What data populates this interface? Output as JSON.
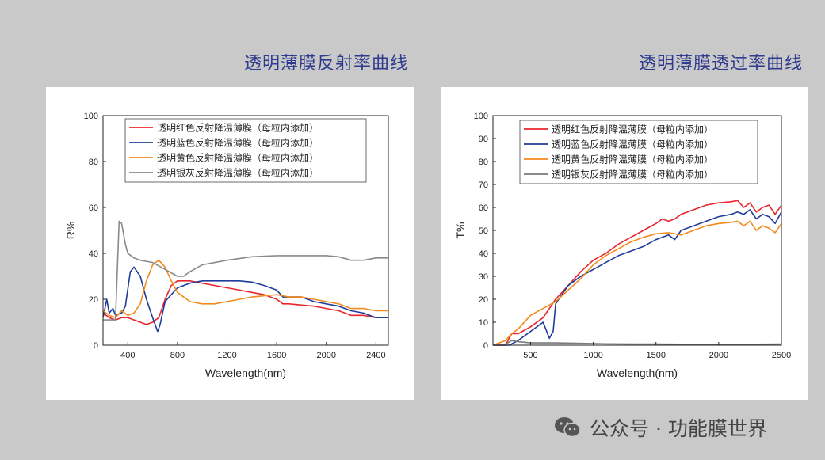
{
  "titles": {
    "left": "透明薄膜反射率曲线",
    "right": "透明薄膜透过率曲线"
  },
  "watermark": {
    "text": "公众号 · 功能膜世界",
    "icon": "wechat-icon"
  },
  "chart_data": [
    {
      "type": "line",
      "title": "",
      "xlabel": "Wavelength(nm)",
      "ylabel": "R%",
      "xlim": [
        200,
        2500
      ],
      "ylim": [
        0,
        100
      ],
      "xticks": [
        400,
        800,
        1200,
        1600,
        2000,
        2400
      ],
      "yticks": [
        0,
        20,
        40,
        60,
        80,
        100
      ],
      "legend_position": "top-right",
      "series": [
        {
          "name": "透明红色反射降温薄膜（母粒内添加）",
          "color": "#e8262f",
          "x": [
            200,
            250,
            300,
            350,
            400,
            450,
            500,
            550,
            600,
            650,
            700,
            750,
            800,
            900,
            1000,
            1100,
            1200,
            1300,
            1400,
            1500,
            1600,
            1650,
            1700,
            1800,
            1900,
            2000,
            2100,
            2200,
            2300,
            2400,
            2500
          ],
          "y": [
            14,
            12,
            11,
            12,
            12,
            11,
            10,
            9,
            10,
            12,
            20,
            26,
            28,
            28,
            27,
            26,
            25,
            24,
            23,
            22,
            20,
            18,
            18,
            17.5,
            17,
            16,
            15,
            13,
            13,
            12,
            12
          ]
        },
        {
          "name": "透明蓝色反射降温薄膜（母粒内添加）",
          "color": "#1f3c9a",
          "x": [
            200,
            230,
            250,
            280,
            300,
            350,
            380,
            420,
            450,
            500,
            550,
            600,
            620,
            640,
            660,
            700,
            800,
            900,
            1000,
            1100,
            1200,
            1300,
            1400,
            1500,
            1600,
            1650,
            1700,
            1800,
            1900,
            2000,
            2100,
            2200,
            2300,
            2400,
            2500
          ],
          "y": [
            12,
            20,
            14,
            16,
            13,
            14,
            17,
            32,
            34,
            30,
            20,
            12,
            9,
            6,
            9,
            19,
            25,
            27,
            28,
            28,
            28,
            28,
            27.5,
            26,
            24,
            21,
            21,
            21,
            19,
            18,
            17,
            15,
            14,
            12,
            12
          ]
        },
        {
          "name": "透明黄色反射降温薄膜（母粒内添加）",
          "color": "#f28a1e",
          "x": [
            200,
            250,
            300,
            350,
            400,
            450,
            500,
            550,
            600,
            650,
            700,
            750,
            800,
            900,
            1000,
            1100,
            1200,
            1300,
            1400,
            1500,
            1600,
            1700,
            1800,
            1900,
            2000,
            2100,
            2200,
            2300,
            2400,
            2500
          ],
          "y": [
            15,
            13,
            12,
            15,
            13,
            14,
            18,
            28,
            35,
            37,
            34,
            28,
            23,
            19,
            18,
            18,
            19,
            20,
            21,
            21.5,
            22,
            21,
            21,
            20,
            19,
            18,
            16,
            16,
            15,
            15
          ]
        },
        {
          "name": "透明银灰反射降温薄膜（母粒内添加）",
          "color": "#8a8a8a",
          "x": [
            200,
            250,
            300,
            330,
            350,
            380,
            400,
            450,
            500,
            600,
            700,
            800,
            850,
            900,
            1000,
            1200,
            1400,
            1600,
            1800,
            2000,
            2100,
            2200,
            2300,
            2400,
            2500
          ],
          "y": [
            11,
            11,
            11,
            54,
            53,
            44,
            40,
            38,
            37,
            36,
            33,
            30,
            30,
            32,
            35,
            37,
            38.5,
            39,
            39,
            39,
            38.5,
            37,
            37,
            38,
            38
          ]
        }
      ]
    },
    {
      "type": "line",
      "title": "",
      "xlabel": "Wavelength(nm)",
      "ylabel": "T%",
      "xlim": [
        200,
        2500
      ],
      "ylim": [
        0,
        100
      ],
      "xticks": [
        500,
        1000,
        1500,
        2000,
        2500
      ],
      "yticks": [
        0,
        10,
        20,
        30,
        40,
        50,
        60,
        70,
        80,
        90,
        100
      ],
      "legend_position": "top",
      "series": [
        {
          "name": "透明红色反射降温薄膜（母粒内添加）",
          "color": "#e8262f",
          "x": [
            200,
            300,
            350,
            400,
            500,
            600,
            700,
            800,
            900,
            1000,
            1100,
            1200,
            1300,
            1400,
            1500,
            1550,
            1600,
            1650,
            1700,
            1800,
            1900,
            2000,
            2100,
            2150,
            2200,
            2250,
            2300,
            2350,
            2400,
            2450,
            2500
          ],
          "y": [
            0,
            0,
            5,
            5,
            8,
            12,
            20,
            26,
            32,
            37,
            40,
            44,
            47,
            50,
            53,
            55,
            54,
            55,
            57,
            59,
            61,
            62,
            62.5,
            63,
            60,
            62,
            58,
            60,
            61,
            57,
            61
          ]
        },
        {
          "name": "透明蓝色反射降温薄膜（母粒内添加）",
          "color": "#1f3c9a",
          "x": [
            200,
            300,
            330,
            400,
            500,
            600,
            650,
            680,
            700,
            750,
            800,
            900,
            1000,
            1100,
            1200,
            1300,
            1400,
            1500,
            1600,
            1650,
            1700,
            1800,
            1900,
            2000,
            2100,
            2150,
            2200,
            2250,
            2300,
            2350,
            2400,
            2450,
            2500
          ],
          "y": [
            0,
            0,
            0,
            2,
            6,
            10,
            3,
            6,
            18,
            22,
            26,
            30,
            33,
            36,
            39,
            41,
            43,
            46,
            48,
            46,
            50,
            52,
            54,
            56,
            57,
            58,
            57,
            59,
            55,
            57,
            56,
            53,
            58
          ]
        },
        {
          "name": "透明黄色反射降温薄膜（母粒内添加）",
          "color": "#f28a1e",
          "x": [
            200,
            300,
            350,
            400,
            500,
            600,
            700,
            800,
            900,
            1000,
            1100,
            1200,
            1300,
            1400,
            1500,
            1600,
            1700,
            1800,
            1900,
            2000,
            2100,
            2150,
            2200,
            2250,
            2300,
            2350,
            2400,
            2450,
            2500
          ],
          "y": [
            0,
            2,
            5,
            7,
            13,
            16,
            19,
            24,
            29,
            35,
            39,
            42,
            45,
            47,
            48.5,
            49,
            48,
            50,
            52,
            53,
            53.5,
            54,
            52,
            54,
            50,
            52,
            51,
            49,
            53
          ]
        },
        {
          "name": "透明银灰反射降温薄膜（母粒内添加）",
          "color": "#7a7a7a",
          "x": [
            200,
            300,
            350,
            400,
            500,
            700,
            900,
            1100,
            1300,
            1500,
            1700,
            1900,
            2100,
            2300,
            2500
          ],
          "y": [
            0,
            0.5,
            2,
            1.5,
            1,
            1,
            0.8,
            0.6,
            0.5,
            0.5,
            0.4,
            0.4,
            0.4,
            0.4,
            0.5
          ]
        }
      ]
    }
  ]
}
